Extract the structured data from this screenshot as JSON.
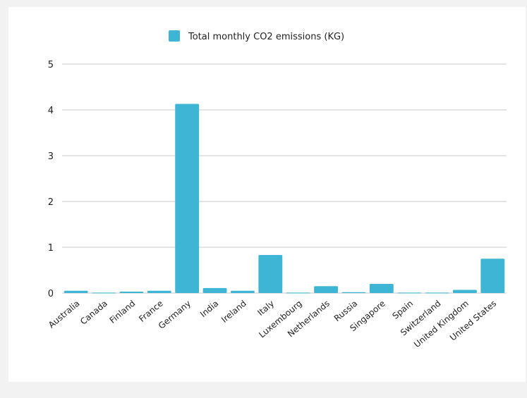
{
  "chart_data": {
    "type": "bar",
    "categories": [
      "Australia",
      "Canada",
      "Finland",
      "France",
      "Germany",
      "India",
      "Ireland",
      "Italy",
      "Luxembourg",
      "Netherlands",
      "Russia",
      "Singapore",
      "Spain",
      "Switzerland",
      "United Kingdom",
      "United States"
    ],
    "series": [
      {
        "name": "Total monthly CO2 emissions (KG)",
        "values": [
          0.05,
          0.01,
          0.03,
          0.05,
          4.13,
          0.11,
          0.05,
          0.83,
          0.01,
          0.15,
          0.02,
          0.2,
          0.01,
          0.01,
          0.07,
          0.75
        ]
      }
    ],
    "yticks": [
      0,
      1,
      2,
      3,
      4,
      5
    ],
    "ylim": [
      0,
      5
    ],
    "grid": true,
    "legend_position": "top-center",
    "bar_color": "#3fb5d5",
    "grid_color": "#c8c8c8"
  }
}
